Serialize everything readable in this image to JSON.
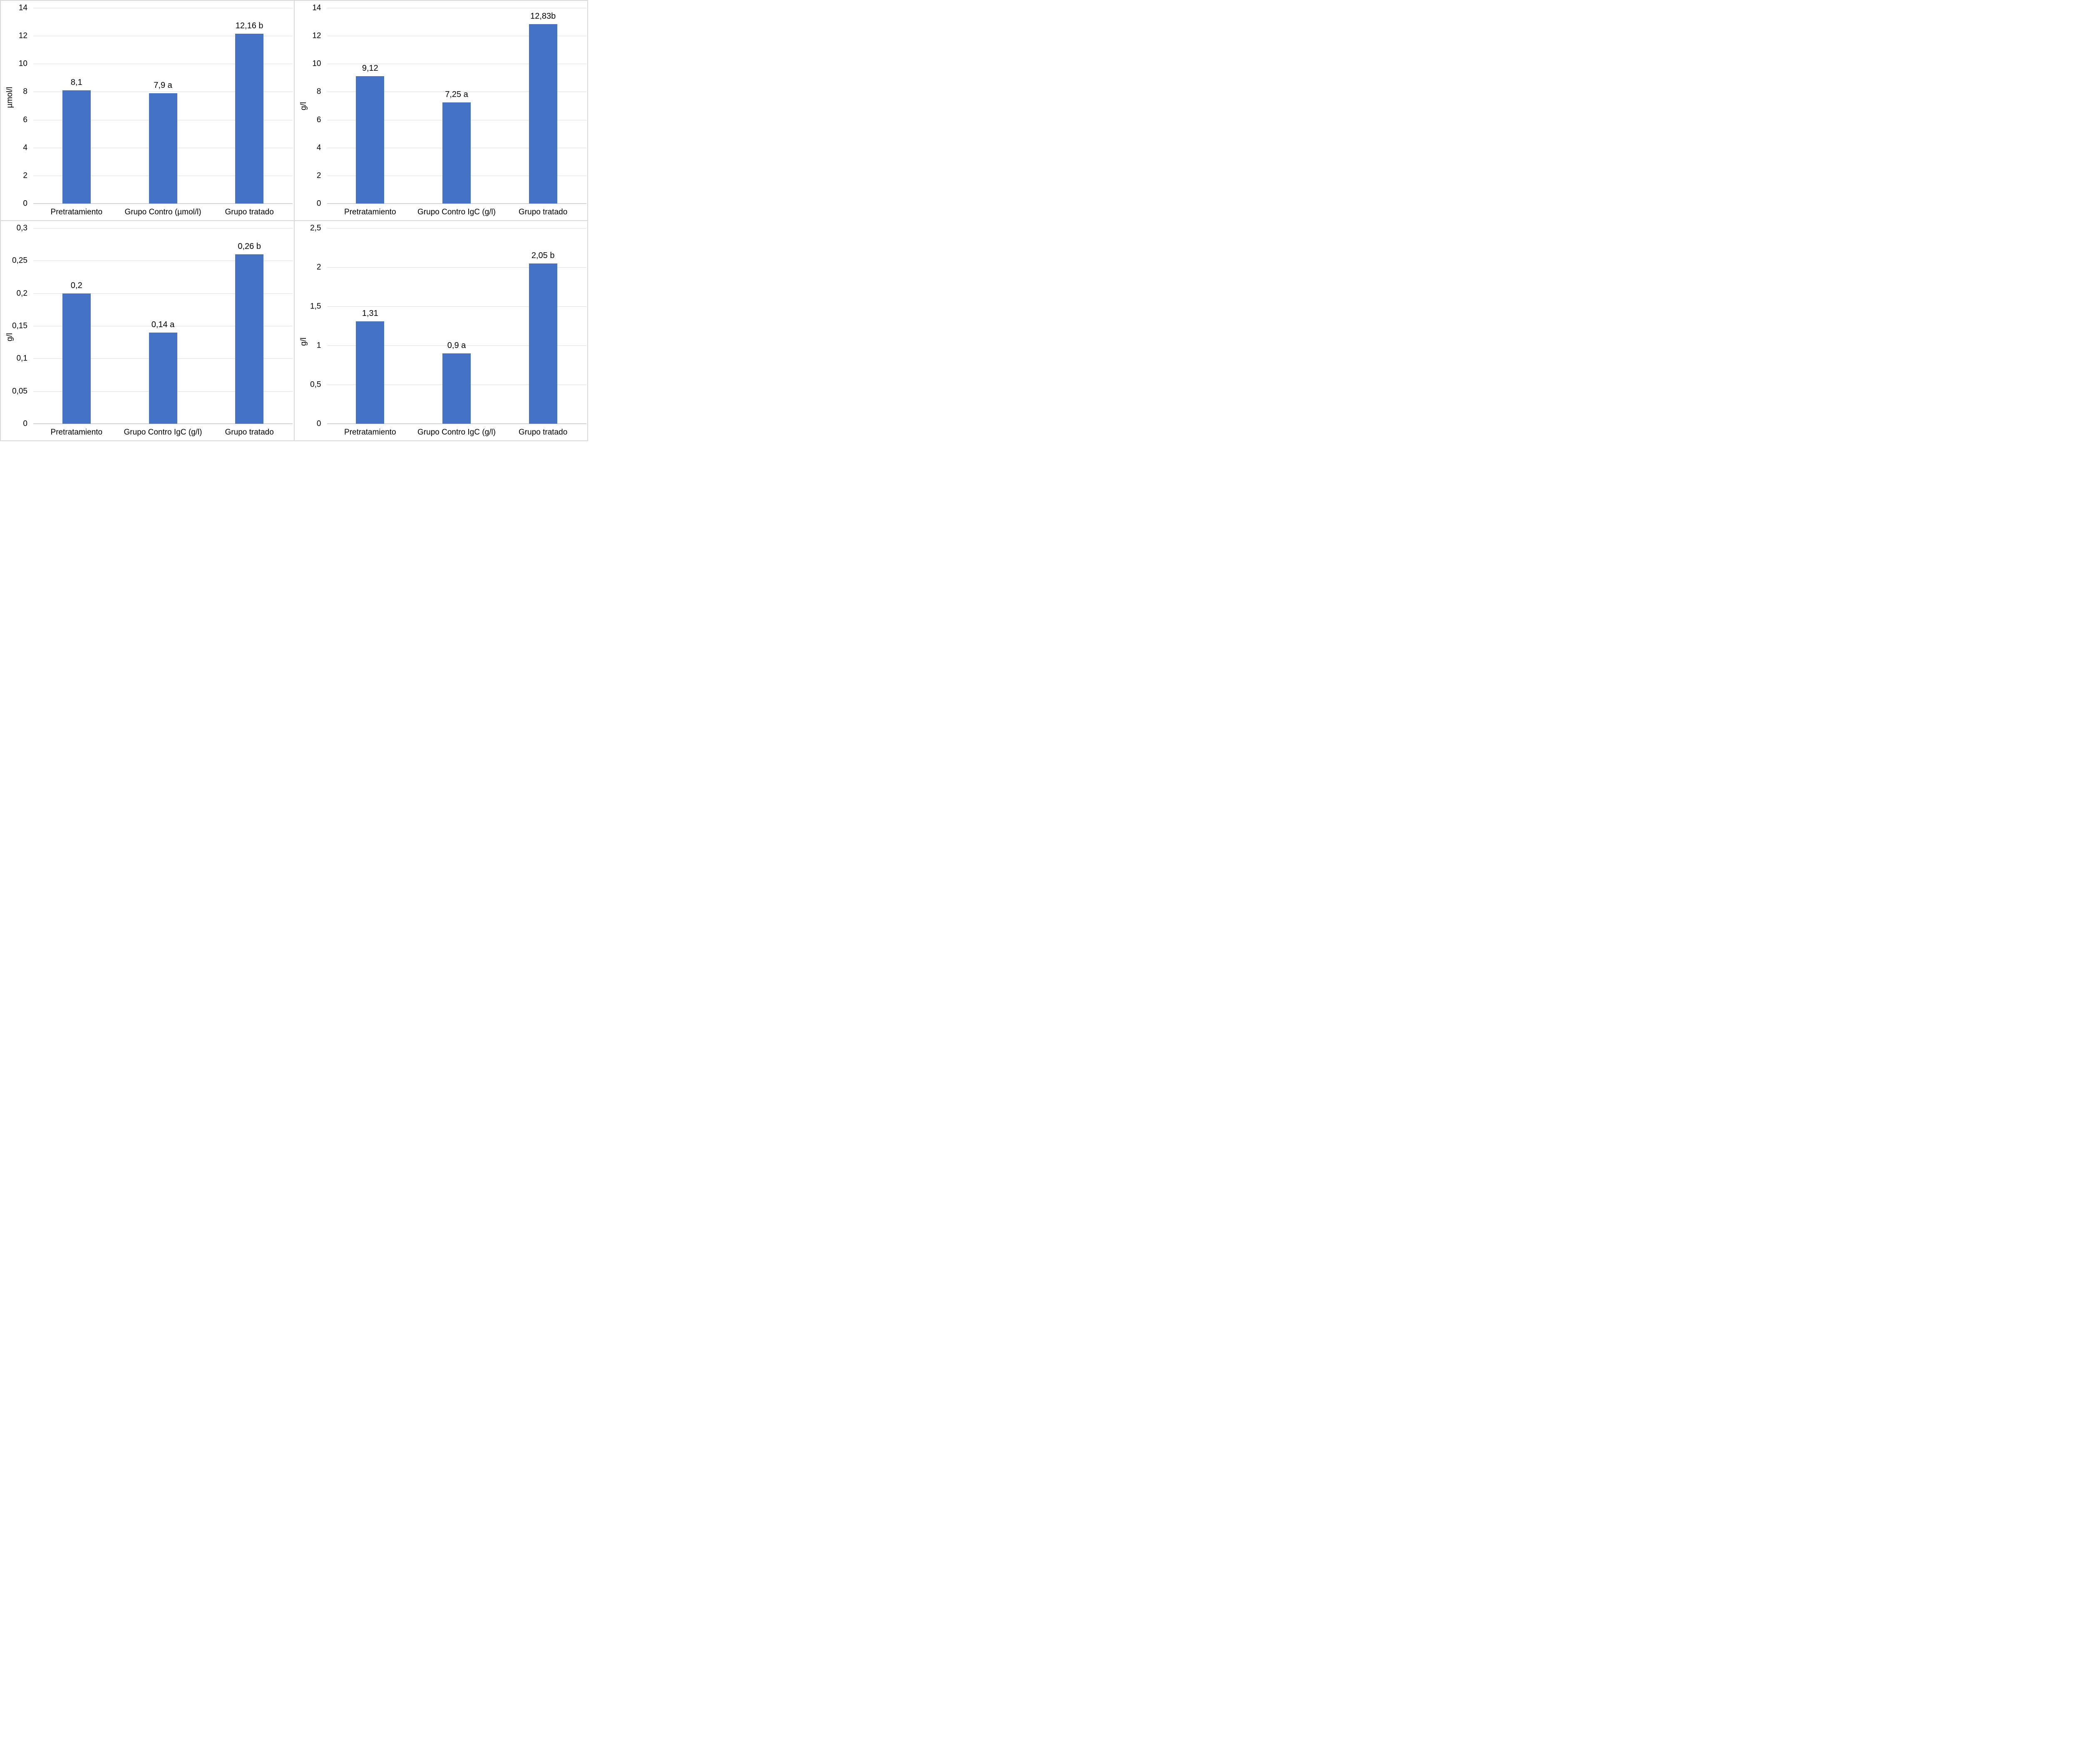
{
  "figure": {
    "bar_color": "#4472C4",
    "gridline_color": "#DEDEDE",
    "axis_line_color": "#D4D4D4",
    "border_color": "#D9D9D9",
    "text_color": "#000000"
  },
  "chart_data": [
    {
      "type": "bar",
      "position": "top-left",
      "title": "",
      "xlabel": "",
      "ylabel": "µmol/l",
      "ylim": [
        0,
        14
      ],
      "grid": true,
      "legend": "none",
      "yticks": [
        {
          "value": 14,
          "label": "14"
        },
        {
          "value": 12,
          "label": "12"
        },
        {
          "value": 10,
          "label": "10"
        },
        {
          "value": 8,
          "label": "8"
        },
        {
          "value": 6,
          "label": "6"
        },
        {
          "value": 4,
          "label": "4"
        },
        {
          "value": 2,
          "label": "2"
        },
        {
          "value": 0,
          "label": "0"
        }
      ],
      "categories": [
        "Pretratamiento",
        "Grupo Contro (µmol/l)",
        "Grupo tratado"
      ],
      "bars": [
        {
          "value": 8.1,
          "label": "8,1"
        },
        {
          "value": 7.9,
          "label": "7,9 a"
        },
        {
          "value": 12.16,
          "label": "12,16 b"
        }
      ]
    },
    {
      "type": "bar",
      "position": "top-right",
      "title": "",
      "xlabel": "",
      "ylabel": "g/l",
      "ylim": [
        0,
        14
      ],
      "grid": true,
      "legend": "none",
      "yticks": [
        {
          "value": 14,
          "label": "14"
        },
        {
          "value": 12,
          "label": "12"
        },
        {
          "value": 10,
          "label": "10"
        },
        {
          "value": 8,
          "label": "8"
        },
        {
          "value": 6,
          "label": "6"
        },
        {
          "value": 4,
          "label": "4"
        },
        {
          "value": 2,
          "label": "2"
        },
        {
          "value": 0,
          "label": "0"
        }
      ],
      "categories": [
        "Pretratamiento",
        "Grupo Contro IgC (g/l)",
        "Grupo tratado"
      ],
      "bars": [
        {
          "value": 9.12,
          "label": "9,12"
        },
        {
          "value": 7.25,
          "label": "7,25 a"
        },
        {
          "value": 12.83,
          "label": "12,83b"
        }
      ]
    },
    {
      "type": "bar",
      "position": "bottom-left",
      "title": "",
      "xlabel": "",
      "ylabel": "g/l",
      "ylim": [
        0,
        0.3
      ],
      "grid": true,
      "legend": "none",
      "yticks": [
        {
          "value": 0.3,
          "label": "0,3"
        },
        {
          "value": 0.25,
          "label": "0,25"
        },
        {
          "value": 0.2,
          "label": "0,2"
        },
        {
          "value": 0.15,
          "label": "0,15"
        },
        {
          "value": 0.1,
          "label": "0,1"
        },
        {
          "value": 0.05,
          "label": "0,05"
        },
        {
          "value": 0,
          "label": "0"
        }
      ],
      "categories": [
        "Pretratamiento",
        "Grupo Contro IgC (g/l)",
        "Grupo tratado"
      ],
      "bars": [
        {
          "value": 0.2,
          "label": "0,2"
        },
        {
          "value": 0.14,
          "label": "0,14 a"
        },
        {
          "value": 0.26,
          "label": "0,26 b"
        }
      ]
    },
    {
      "type": "bar",
      "position": "bottom-right",
      "title": "",
      "xlabel": "",
      "ylabel": "g/l",
      "ylim": [
        0,
        2.5
      ],
      "grid": true,
      "legend": "none",
      "yticks": [
        {
          "value": 2.5,
          "label": "2,5"
        },
        {
          "value": 2,
          "label": "2"
        },
        {
          "value": 1.5,
          "label": "1,5"
        },
        {
          "value": 1,
          "label": "1"
        },
        {
          "value": 0.5,
          "label": "0,5"
        },
        {
          "value": 0,
          "label": "0"
        }
      ],
      "categories": [
        "Pretratamiento",
        "Grupo Contro IgC (g/l)",
        "Grupo tratado"
      ],
      "bars": [
        {
          "value": 1.31,
          "label": "1,31"
        },
        {
          "value": 0.9,
          "label": "0,9 a"
        },
        {
          "value": 2.05,
          "label": "2,05 b"
        }
      ]
    }
  ]
}
